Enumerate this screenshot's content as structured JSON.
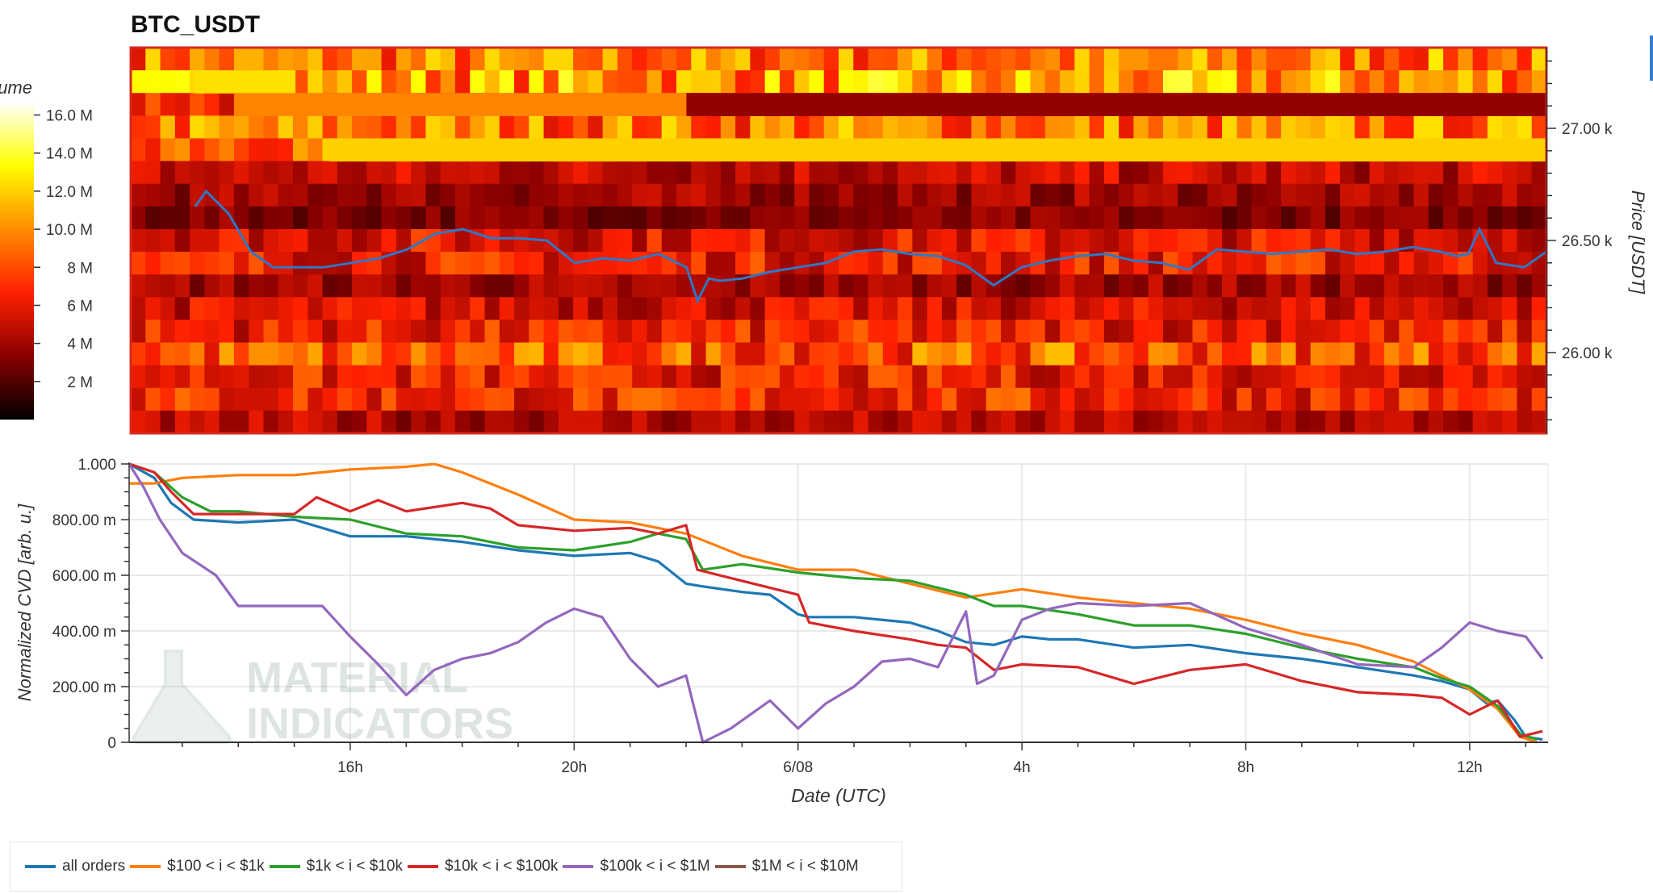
{
  "title": "BTC_USDT",
  "colors": {
    "price_line": "#2f78c4",
    "grid": "#e4e4e4",
    "border": "#d62a1e"
  },
  "watermark": {
    "line1": "MATERIAL",
    "line2": "INDICATORS"
  },
  "chart_data": [
    {
      "type": "heatmap",
      "title": "BTC_USDT",
      "colorbar": {
        "label": "Volume",
        "ticks": [
          "2 M",
          "4 M",
          "6 M",
          "8 M",
          "10.0 M",
          "12.0 M",
          "14.0 M",
          "16.0 M"
        ],
        "tick_values": [
          2,
          4,
          6,
          8,
          10,
          12,
          14,
          16
        ],
        "range": [
          0,
          16.7
        ],
        "colors": [
          "#000000",
          "#8b0000",
          "#ff2000",
          "#ff8c00",
          "#ffff00",
          "#ffffff"
        ]
      },
      "y_axis": {
        "label": "Price [USDT]",
        "ticks": [
          "26.00 k",
          "26.50 k",
          "27.00 k"
        ],
        "tick_values": [
          26000,
          26500,
          27000
        ],
        "range": [
          25640,
          27360
        ],
        "side": "right"
      },
      "price_bins": [
        {
          "level": 27300,
          "base": 9.5
        },
        {
          "level": 27200,
          "base": 10.5
        },
        {
          "level": 27100,
          "base": 7.5
        },
        {
          "level": 27000,
          "base": 9.5
        },
        {
          "level": 26900,
          "base": 10.0
        },
        {
          "level": 26800,
          "base": 5.0
        },
        {
          "level": 26700,
          "base": 4.0
        },
        {
          "level": 26600,
          "base": 3.2
        },
        {
          "level": 26500,
          "base": 6.0
        },
        {
          "level": 26400,
          "base": 6.5
        },
        {
          "level": 26300,
          "base": 4.0
        },
        {
          "level": 26200,
          "base": 5.5
        },
        {
          "level": 26100,
          "base": 6.5
        },
        {
          "level": 26000,
          "base": 8.5
        },
        {
          "level": 25900,
          "base": 6.5
        },
        {
          "level": 25800,
          "base": 7.0
        },
        {
          "level": 25700,
          "base": 4.5
        }
      ],
      "highlight_bands": [
        {
          "level": 27200,
          "from_hours": 13.2,
          "to_hours": 15.0,
          "value": 12.5
        },
        {
          "level": 27100,
          "from_hours": 13.9,
          "to_hours": 22.0,
          "value": 9.8
        },
        {
          "level": 27100,
          "from_hours": 22.0,
          "to_hours": 37.5,
          "value": 3.5
        },
        {
          "level": 26900,
          "from_hours": 15.6,
          "to_hours": 37.5,
          "value": 12.0
        }
      ],
      "price_series": {
        "x_hours": [
          13.2,
          13.4,
          13.8,
          14.2,
          14.6,
          15.0,
          15.5,
          16.0,
          16.5,
          17.0,
          17.5,
          18.0,
          18.5,
          19.0,
          19.5,
          20.0,
          20.5,
          21.0,
          21.5,
          22.0,
          22.2,
          22.4,
          22.6,
          23.0,
          23.5,
          24.0,
          24.5,
          25.0,
          25.5,
          26.0,
          26.5,
          27.0,
          27.5,
          28.0,
          28.5,
          29.0,
          29.5,
          30.0,
          30.5,
          31.0,
          31.5,
          32.0,
          32.5,
          33.0,
          33.5,
          34.0,
          34.5,
          35.0,
          35.5,
          35.8,
          36.0,
          36.2,
          36.5,
          37.0,
          37.4
        ],
        "y": [
          26650,
          26720,
          26620,
          26450,
          26380,
          26380,
          26380,
          26400,
          26420,
          26460,
          26530,
          26550,
          26510,
          26510,
          26500,
          26400,
          26420,
          26410,
          26440,
          26380,
          26230,
          26330,
          26320,
          26330,
          26360,
          26380,
          26400,
          26450,
          26460,
          26440,
          26430,
          26390,
          26300,
          26380,
          26410,
          26430,
          26440,
          26410,
          26400,
          26370,
          26460,
          26450,
          26440,
          26450,
          26460,
          26440,
          26450,
          26470,
          26450,
          26430,
          26440,
          26550,
          26400,
          26380,
          26450
        ]
      }
    },
    {
      "type": "line",
      "xlabel": "Date (UTC)",
      "ylabel": "Normalized CVD [arb. u.]",
      "x_ticks": [
        "16h",
        "20h",
        "6/08",
        "4h",
        "8h",
        "12h"
      ],
      "x_tick_hours": [
        16,
        20,
        24,
        28,
        32,
        36
      ],
      "xlim_hours": [
        12.05,
        37.4
      ],
      "y_ticks": [
        "0",
        "200.00 m",
        "400.00 m",
        "600.00 m",
        "800.00 m",
        "1.000"
      ],
      "y_tick_values": [
        0,
        0.2,
        0.4,
        0.6,
        0.8,
        1.0
      ],
      "ylim": [
        0,
        1.0
      ],
      "grid": true,
      "legend_position": "bottom",
      "series": [
        {
          "name": "all orders",
          "color": "#1f77b4",
          "x": [
            12.05,
            12.5,
            12.8,
            13.2,
            14.0,
            15.0,
            15.5,
            16.0,
            17.0,
            18.0,
            19.0,
            20.0,
            21.0,
            21.5,
            22.0,
            22.3,
            23.0,
            23.5,
            24.0,
            24.2,
            25.0,
            26.0,
            26.5,
            27.0,
            27.5,
            28.0,
            28.5,
            29.0,
            30.0,
            31.0,
            32.0,
            33.0,
            34.0,
            35.0,
            35.5,
            36.0,
            36.3,
            36.5,
            36.8,
            37.0,
            37.3
          ],
          "y": [
            1.0,
            0.95,
            0.86,
            0.8,
            0.79,
            0.8,
            0.77,
            0.74,
            0.74,
            0.72,
            0.69,
            0.67,
            0.68,
            0.65,
            0.57,
            0.56,
            0.54,
            0.53,
            0.46,
            0.45,
            0.45,
            0.43,
            0.4,
            0.36,
            0.35,
            0.38,
            0.37,
            0.37,
            0.34,
            0.35,
            0.32,
            0.3,
            0.27,
            0.24,
            0.22,
            0.19,
            0.14,
            0.15,
            0.08,
            0.02,
            0.01
          ]
        },
        {
          "name": "$100 < i < $1k",
          "color": "#ff7f0e",
          "x": [
            12.05,
            12.5,
            13.0,
            14.0,
            15.0,
            15.5,
            16.0,
            17.0,
            17.5,
            18.0,
            19.0,
            20.0,
            21.0,
            22.0,
            23.0,
            24.0,
            25.0,
            26.0,
            27.0,
            28.0,
            29.0,
            30.0,
            31.0,
            32.0,
            33.0,
            34.0,
            35.0,
            35.5,
            36.0,
            36.5,
            36.9,
            37.2
          ],
          "y": [
            0.93,
            0.93,
            0.95,
            0.96,
            0.96,
            0.97,
            0.98,
            0.99,
            1.0,
            0.97,
            0.89,
            0.8,
            0.79,
            0.75,
            0.67,
            0.62,
            0.62,
            0.57,
            0.52,
            0.55,
            0.52,
            0.5,
            0.48,
            0.44,
            0.39,
            0.35,
            0.29,
            0.24,
            0.19,
            0.12,
            0.02,
            0.0
          ]
        },
        {
          "name": "$1k < i < $10k",
          "color": "#2ca02c",
          "x": [
            12.05,
            12.5,
            13.0,
            13.5,
            14.0,
            15.0,
            16.0,
            17.0,
            18.0,
            19.0,
            20.0,
            21.0,
            21.5,
            22.0,
            22.3,
            23.0,
            24.0,
            25.0,
            26.0,
            27.0,
            27.5,
            28.0,
            29.0,
            30.0,
            31.0,
            32.0,
            33.0,
            34.0,
            35.0,
            35.5,
            36.0,
            36.5,
            36.9,
            37.2
          ],
          "y": [
            1.0,
            0.97,
            0.88,
            0.83,
            0.83,
            0.81,
            0.8,
            0.75,
            0.74,
            0.7,
            0.69,
            0.72,
            0.75,
            0.73,
            0.62,
            0.64,
            0.61,
            0.59,
            0.58,
            0.53,
            0.49,
            0.49,
            0.46,
            0.42,
            0.42,
            0.39,
            0.34,
            0.3,
            0.27,
            0.23,
            0.2,
            0.13,
            0.03,
            0.01
          ]
        },
        {
          "name": "$10k < i < $100k",
          "color": "#d62728",
          "x": [
            12.05,
            12.5,
            12.8,
            13.2,
            14.0,
            15.0,
            15.4,
            16.0,
            16.5,
            17.0,
            18.0,
            18.5,
            19.0,
            20.0,
            21.0,
            21.5,
            22.0,
            22.2,
            23.0,
            24.0,
            24.2,
            25.0,
            26.0,
            26.5,
            27.0,
            27.5,
            28.0,
            29.0,
            30.0,
            31.0,
            32.0,
            33.0,
            34.0,
            35.0,
            35.5,
            36.0,
            36.5,
            36.9,
            37.3
          ],
          "y": [
            1.0,
            0.97,
            0.9,
            0.82,
            0.82,
            0.82,
            0.88,
            0.83,
            0.87,
            0.83,
            0.86,
            0.84,
            0.78,
            0.76,
            0.77,
            0.75,
            0.78,
            0.62,
            0.58,
            0.53,
            0.43,
            0.4,
            0.37,
            0.35,
            0.34,
            0.26,
            0.28,
            0.27,
            0.21,
            0.26,
            0.28,
            0.22,
            0.18,
            0.17,
            0.16,
            0.1,
            0.15,
            0.02,
            0.04
          ]
        },
        {
          "name": "$100k < i < $1M",
          "color": "#9467bd",
          "x": [
            12.05,
            12.3,
            12.6,
            13.0,
            13.6,
            14.0,
            15.0,
            15.5,
            16.0,
            16.5,
            17.0,
            17.5,
            18.0,
            18.5,
            19.0,
            19.5,
            20.0,
            20.5,
            21.0,
            21.5,
            22.0,
            22.3,
            22.8,
            23.5,
            24.0,
            24.5,
            25.0,
            25.5,
            26.0,
            26.5,
            27.0,
            27.2,
            27.5,
            28.0,
            28.5,
            29.0,
            30.0,
            31.0,
            32.0,
            33.0,
            34.0,
            35.0,
            35.5,
            36.0,
            36.5,
            37.0,
            37.3
          ],
          "y": [
            1.0,
            0.92,
            0.8,
            0.68,
            0.6,
            0.49,
            0.49,
            0.49,
            0.38,
            0.28,
            0.17,
            0.26,
            0.3,
            0.32,
            0.36,
            0.43,
            0.48,
            0.45,
            0.3,
            0.2,
            0.24,
            0.0,
            0.05,
            0.15,
            0.05,
            0.14,
            0.2,
            0.29,
            0.3,
            0.27,
            0.47,
            0.21,
            0.24,
            0.44,
            0.48,
            0.5,
            0.49,
            0.5,
            0.41,
            0.35,
            0.28,
            0.27,
            0.34,
            0.43,
            0.4,
            0.38,
            0.3
          ]
        },
        {
          "name": "$1M < i < $10M",
          "color": "#8c564b",
          "x": [],
          "y": []
        }
      ]
    }
  ]
}
